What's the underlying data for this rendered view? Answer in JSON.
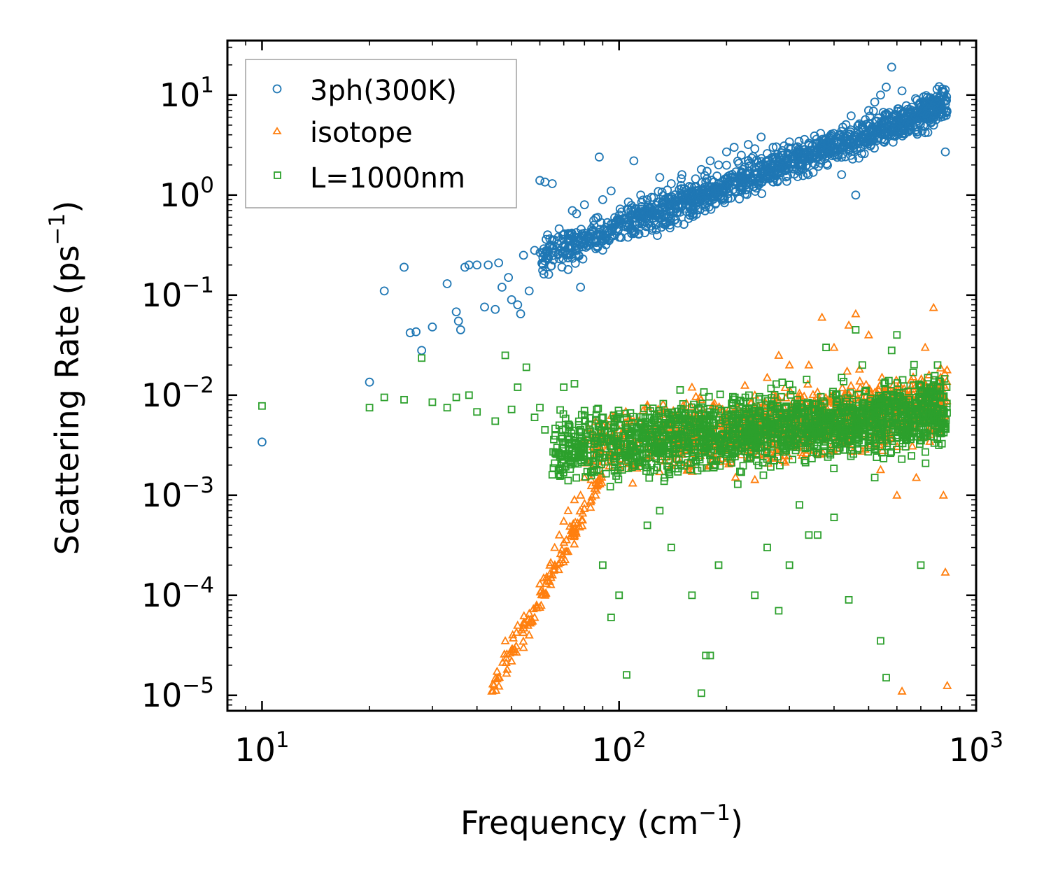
{
  "chart_data": {
    "type": "scatter",
    "title": "",
    "xlabel": "Frequency (cm",
    "xlabel_sup": "−1",
    "xlabel_tail": ")",
    "ylabel": "Scattering Rate (ps",
    "ylabel_sup": "−1",
    "ylabel_tail": ")",
    "xscale": "log",
    "yscale": "log",
    "xlim": [
      8,
      1000
    ],
    "ylim": [
      7e-06,
      35
    ],
    "x_ticks": [
      {
        "value": 10,
        "base": "10",
        "exp": "1"
      },
      {
        "value": 100,
        "base": "10",
        "exp": "2"
      },
      {
        "value": 1000,
        "base": "10",
        "exp": "3"
      }
    ],
    "y_ticks": [
      {
        "value": 1e-05,
        "base": "10",
        "exp": "−5"
      },
      {
        "value": 0.0001,
        "base": "10",
        "exp": "−4"
      },
      {
        "value": 0.001,
        "base": "10",
        "exp": "−3"
      },
      {
        "value": 0.01,
        "base": "10",
        "exp": "−2"
      },
      {
        "value": 0.1,
        "base": "10",
        "exp": "−1"
      },
      {
        "value": 1,
        "base": "10",
        "exp": "0"
      },
      {
        "value": 10,
        "base": "10",
        "exp": "1"
      }
    ],
    "legend_position": "top-left",
    "series": [
      {
        "name": "3ph(300K)",
        "marker": "circle",
        "color": "#1f77b4",
        "points": [
          [
            10,
            0.0034
          ],
          [
            20,
            0.0135
          ],
          [
            22,
            0.11
          ],
          [
            25,
            0.19
          ],
          [
            26,
            0.042
          ],
          [
            27,
            0.043
          ],
          [
            28,
            0.028
          ],
          [
            30,
            0.048
          ],
          [
            33,
            0.13
          ],
          [
            35,
            0.068
          ],
          [
            35.5,
            0.055
          ],
          [
            36,
            0.045
          ],
          [
            37,
            0.19
          ],
          [
            38,
            0.2
          ],
          [
            40,
            0.2
          ],
          [
            42,
            0.076
          ],
          [
            43,
            0.2
          ],
          [
            45,
            0.072
          ],
          [
            46,
            0.21
          ],
          [
            47,
            0.12
          ],
          [
            49,
            0.15
          ],
          [
            50,
            0.09
          ],
          [
            52,
            0.08
          ],
          [
            53,
            0.065
          ],
          [
            54,
            0.25
          ],
          [
            56,
            0.11
          ],
          [
            58,
            0.28
          ],
          [
            60,
            1.4
          ],
          [
            62,
            1.35
          ],
          [
            64,
            0.3
          ],
          [
            65,
            1.3
          ],
          [
            68,
            0.35
          ],
          [
            70,
            0.4
          ],
          [
            72,
            0.18
          ],
          [
            74,
            0.7
          ],
          [
            76,
            0.65
          ],
          [
            78,
            0.12
          ],
          [
            80,
            0.8
          ],
          [
            85,
            0.5
          ],
          [
            88,
            2.4
          ],
          [
            90,
            0.9
          ],
          [
            95,
            1.1
          ],
          [
            100,
            0.55
          ],
          [
            105,
            0.5
          ],
          [
            110,
            2.2
          ],
          [
            115,
            1.0
          ],
          [
            120,
            0.9
          ],
          [
            130,
            1.5
          ],
          [
            140,
            1.3
          ],
          [
            150,
            1.6
          ],
          [
            160,
            0.9
          ],
          [
            170,
            1.8
          ],
          [
            180,
            2.2
          ],
          [
            190,
            2.0
          ],
          [
            200,
            2.7
          ],
          [
            210,
            3.0
          ],
          [
            220,
            2.5
          ],
          [
            230,
            3.2
          ],
          [
            240,
            2.9
          ],
          [
            250,
            3.8
          ],
          [
            260,
            2.6
          ],
          [
            270,
            3.0
          ],
          [
            280,
            2.4
          ],
          [
            290,
            3.1
          ],
          [
            300,
            3.4
          ],
          [
            320,
            2.8
          ],
          [
            340,
            3.3
          ],
          [
            360,
            2.9
          ],
          [
            380,
            3.6
          ],
          [
            400,
            3.5
          ],
          [
            420,
            1.6
          ],
          [
            440,
            3.2
          ],
          [
            460,
            1.0
          ],
          [
            480,
            5.0
          ],
          [
            500,
            7.0
          ],
          [
            520,
            8.5
          ],
          [
            540,
            10.0
          ],
          [
            560,
            12.0
          ],
          [
            580,
            19.0
          ],
          [
            620,
            11.0
          ],
          [
            650,
            5.0
          ],
          [
            680,
            4.5
          ],
          [
            720,
            4.2
          ],
          [
            760,
            5.0
          ],
          [
            800,
            6.5
          ],
          [
            820,
            2.7
          ]
        ],
        "note": "Dense band from ~0.2–2 ps⁻¹ at 60–150 cm⁻¹ rising to ~2–15 ps⁻¹ at 200–820 cm⁻¹."
      },
      {
        "name": "isotope",
        "marker": "triangle",
        "color": "#ff7f0e",
        "points": [
          [
            44,
            1.1e-05
          ],
          [
            46,
            1.5e-05
          ],
          [
            48,
            3.5e-05
          ],
          [
            50,
            2.2e-05
          ],
          [
            52,
            5e-05
          ],
          [
            54,
            3e-05
          ],
          [
            56,
            4e-05
          ],
          [
            58,
            6e-05
          ],
          [
            60,
            0.00013
          ],
          [
            62,
            0.0001
          ],
          [
            64,
            0.0002
          ],
          [
            66,
            0.0003
          ],
          [
            68,
            0.0004
          ],
          [
            70,
            0.00055
          ],
          [
            72,
            0.0007
          ],
          [
            75,
            0.0009
          ],
          [
            78,
            0.001
          ],
          [
            80,
            0.0015
          ],
          [
            85,
            0.002
          ],
          [
            90,
            0.005
          ],
          [
            100,
            0.003
          ],
          [
            110,
            0.0055
          ],
          [
            120,
            0.008
          ],
          [
            140,
            0.004
          ],
          [
            160,
            0.012
          ],
          [
            180,
            0.002
          ],
          [
            200,
            0.006
          ],
          [
            240,
            0.01
          ],
          [
            260,
            0.015
          ],
          [
            280,
            0.025
          ],
          [
            300,
            0.02
          ],
          [
            340,
            0.02
          ],
          [
            370,
            0.06
          ],
          [
            400,
            0.03
          ],
          [
            440,
            0.05
          ],
          [
            460,
            0.065
          ],
          [
            500,
            0.04
          ],
          [
            540,
            0.0018
          ],
          [
            600,
            0.001
          ],
          [
            620,
            1.1e-05
          ],
          [
            680,
            0.0015
          ],
          [
            720,
            0.03
          ],
          [
            760,
            0.075
          ],
          [
            790,
            0.01
          ],
          [
            810,
            0.001
          ],
          [
            820,
            0.00017
          ],
          [
            830,
            1.25e-05
          ]
        ],
        "note": "Rises steeply from ~1e-5 at 45 cm⁻¹ to ~1e-2 by 150 cm⁻¹, dense cloud 1e-3–7e-2 above."
      },
      {
        "name": "L=1000nm",
        "marker": "square",
        "color": "#2ca02c",
        "points": [
          [
            10,
            0.0078
          ],
          [
            20,
            0.0075
          ],
          [
            22,
            0.0095
          ],
          [
            25,
            0.009
          ],
          [
            28,
            0.0235
          ],
          [
            30,
            0.0085
          ],
          [
            33,
            0.0075
          ],
          [
            35,
            0.0095
          ],
          [
            38,
            0.01
          ],
          [
            40,
            0.0068
          ],
          [
            45,
            0.0055
          ],
          [
            48,
            0.025
          ],
          [
            50,
            0.0072
          ],
          [
            52,
            0.012
          ],
          [
            55,
            0.019
          ],
          [
            58,
            0.006
          ],
          [
            60,
            0.0075
          ],
          [
            62,
            0.0045
          ],
          [
            65,
            0.0016
          ],
          [
            68,
            0.005
          ],
          [
            70,
            0.012
          ],
          [
            72,
            0.0014
          ],
          [
            75,
            0.013
          ],
          [
            78,
            0.0045
          ],
          [
            80,
            0.007
          ],
          [
            85,
            0.0025
          ],
          [
            90,
            0.0002
          ],
          [
            95,
            6e-05
          ],
          [
            100,
            0.0001
          ],
          [
            105,
            1.6e-05
          ],
          [
            110,
            0.002
          ],
          [
            120,
            0.0005
          ],
          [
            130,
            0.0007
          ],
          [
            140,
            0.0003
          ],
          [
            150,
            0.004
          ],
          [
            160,
            0.0001
          ],
          [
            170,
            1.05e-05
          ],
          [
            175,
            2.5e-05
          ],
          [
            180,
            2.5e-05
          ],
          [
            190,
            0.0002
          ],
          [
            200,
            0.0055
          ],
          [
            220,
            0.0017
          ],
          [
            240,
            0.0001
          ],
          [
            260,
            0.0003
          ],
          [
            280,
            7e-05
          ],
          [
            300,
            0.0002
          ],
          [
            320,
            0.0008
          ],
          [
            340,
            0.0004
          ],
          [
            360,
            0.0004
          ],
          [
            380,
            0.03
          ],
          [
            400,
            0.0006
          ],
          [
            420,
            0.015
          ],
          [
            440,
            9e-05
          ],
          [
            460,
            0.045
          ],
          [
            480,
            0.02
          ],
          [
            500,
            0.003
          ],
          [
            520,
            0.0015
          ],
          [
            540,
            3.5e-05
          ],
          [
            560,
            1.5e-05
          ],
          [
            580,
            0.028
          ],
          [
            600,
            0.04
          ],
          [
            650,
            0.008
          ],
          [
            700,
            0.0002
          ],
          [
            740,
            0.012
          ],
          [
            780,
            0.02
          ],
          [
            800,
            0.005
          ]
        ],
        "note": "Flat ~3e-3–1e-2 at low frequency, dense cloud 1e-4–5e-2 from 80–800 cm⁻¹."
      }
    ]
  }
}
